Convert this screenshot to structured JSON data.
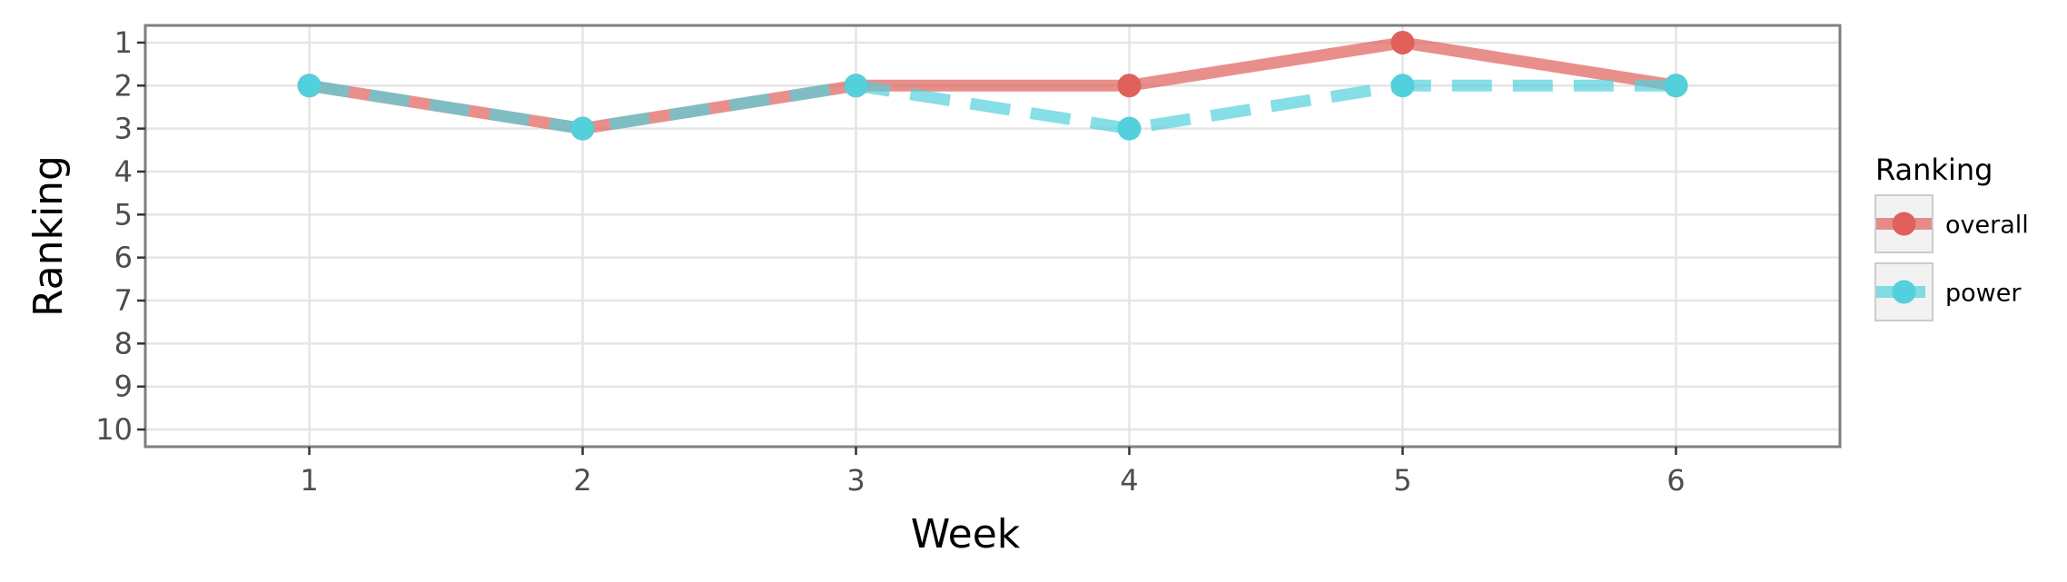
{
  "chart_data": {
    "type": "line",
    "xlabel": "Week",
    "ylabel": "Ranking",
    "x": [
      1,
      2,
      3,
      4,
      5,
      6
    ],
    "xlim": [
      0.4,
      6.6
    ],
    "ylim": [
      10.4,
      0.6
    ],
    "y_reversed": true,
    "x_ticks": [
      "1",
      "2",
      "3",
      "4",
      "5",
      "6"
    ],
    "y_ticks": [
      "1",
      "2",
      "3",
      "4",
      "5",
      "6",
      "7",
      "8",
      "9",
      "10"
    ],
    "grid": true,
    "legend": {
      "title": "Ranking",
      "position": "right"
    },
    "series": [
      {
        "name": "overall",
        "color": "#e0605a",
        "line_style": "solid",
        "values": [
          2,
          3,
          2,
          2,
          1,
          2
        ]
      },
      {
        "name": "power",
        "color": "#52d0db",
        "line_style": "dashed",
        "values": [
          2,
          3,
          2,
          3,
          2,
          2
        ]
      }
    ]
  }
}
